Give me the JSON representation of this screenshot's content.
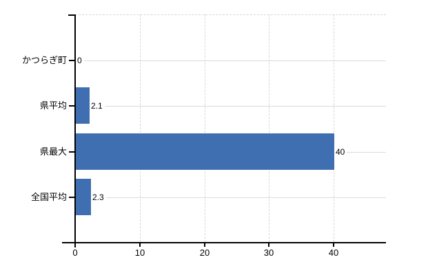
{
  "chart_data": {
    "type": "bar",
    "orientation": "horizontal",
    "title": "",
    "xlabel": "",
    "ylabel": "",
    "categories": [
      "かつらぎ町",
      "県平均",
      "県最大",
      "全国平均"
    ],
    "values": [
      0,
      2.1,
      40,
      2.3
    ],
    "value_labels": [
      "0",
      "2.1",
      "40",
      "2.3"
    ],
    "xlim": [
      0,
      48
    ],
    "xticks": [
      0,
      10,
      20,
      30,
      40
    ],
    "xtick_labels": [
      "0",
      "10",
      "20",
      "30",
      "40"
    ],
    "legend": "none",
    "grid": {
      "vertical": "dashed",
      "top_boundary": "dashed",
      "category_lines": "solid"
    },
    "colors": {
      "bar": "#3f6fb0",
      "axis": "#000000",
      "gridline_dashed": "#d6d6d2",
      "gridline_solid": "#dadad4",
      "text": "#000000",
      "background": "#ffffff"
    }
  }
}
